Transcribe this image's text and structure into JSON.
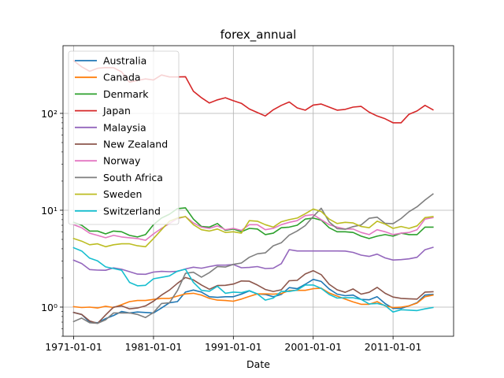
{
  "chart_data": {
    "type": "line",
    "title": "forex_annual",
    "xlabel": "Date",
    "ylabel": "",
    "yscale": "log",
    "ylim": [
      0.5,
      500
    ],
    "xlim": [
      "1969-09-01",
      "2018-08-01"
    ],
    "x": [
      "1971-01-01",
      "1972-01-01",
      "1973-01-01",
      "1974-01-01",
      "1975-01-01",
      "1976-01-01",
      "1977-01-01",
      "1978-01-01",
      "1979-01-01",
      "1980-01-01",
      "1981-01-01",
      "1982-01-01",
      "1983-01-01",
      "1984-01-01",
      "1985-01-01",
      "1986-01-01",
      "1987-01-01",
      "1988-01-01",
      "1989-01-01",
      "1990-01-01",
      "1991-01-01",
      "1992-01-01",
      "1993-01-01",
      "1994-01-01",
      "1995-01-01",
      "1996-01-01",
      "1997-01-01",
      "1998-01-01",
      "1999-01-01",
      "2000-01-01",
      "2001-01-01",
      "2002-01-01",
      "2003-01-01",
      "2004-01-01",
      "2005-01-01",
      "2006-01-01",
      "2007-01-01",
      "2008-01-01",
      "2009-01-01",
      "2010-01-01",
      "2011-01-01",
      "2012-01-01",
      "2013-01-01",
      "2014-01-01",
      "2015-01-01",
      "2016-01-01"
    ],
    "xticks": [
      "1971-01-01",
      "1981-01-01",
      "1991-01-01",
      "2001-01-01",
      "2011-01-01"
    ],
    "yticks": [
      {
        "value": 1,
        "label": "10⁰"
      },
      {
        "value": 10,
        "label": "10¹"
      },
      {
        "value": 100,
        "label": "10²"
      }
    ],
    "grid": true,
    "legend_position": "upper left",
    "series": [
      {
        "name": "Australia",
        "color": "#1f77b4",
        "values": [
          0.88,
          0.84,
          0.7,
          0.69,
          0.76,
          0.82,
          0.9,
          0.87,
          0.89,
          0.88,
          0.87,
          0.98,
          1.11,
          1.14,
          1.43,
          1.5,
          1.43,
          1.28,
          1.26,
          1.28,
          1.28,
          1.36,
          1.47,
          1.37,
          1.35,
          1.28,
          1.35,
          1.59,
          1.55,
          1.72,
          1.93,
          1.84,
          1.54,
          1.36,
          1.31,
          1.33,
          1.2,
          1.19,
          1.28,
          1.09,
          0.97,
          0.97,
          1.03,
          1.11,
          1.33,
          1.35
        ]
      },
      {
        "name": "Canada",
        "color": "#ff7f0e",
        "values": [
          1.01,
          0.99,
          1.0,
          0.98,
          1.02,
          0.99,
          1.06,
          1.14,
          1.17,
          1.17,
          1.2,
          1.23,
          1.23,
          1.3,
          1.37,
          1.39,
          1.33,
          1.23,
          1.18,
          1.17,
          1.15,
          1.21,
          1.29,
          1.37,
          1.37,
          1.36,
          1.38,
          1.48,
          1.49,
          1.49,
          1.55,
          1.57,
          1.4,
          1.3,
          1.21,
          1.13,
          1.07,
          1.07,
          1.14,
          1.03,
          0.99,
          1.0,
          1.03,
          1.1,
          1.28,
          1.33
        ]
      },
      {
        "name": "Denmark",
        "color": "#2ca02c",
        "values": [
          7.5,
          7.0,
          6.1,
          6.1,
          5.7,
          6.1,
          6.0,
          5.5,
          5.3,
          5.6,
          7.1,
          8.3,
          9.1,
          10.4,
          10.6,
          8.1,
          6.8,
          6.7,
          7.3,
          6.2,
          6.4,
          6.0,
          6.5,
          6.4,
          5.6,
          5.8,
          6.6,
          6.7,
          7.0,
          8.1,
          8.3,
          7.9,
          6.6,
          6.0,
          6.0,
          5.9,
          5.4,
          5.1,
          5.4,
          5.6,
          5.4,
          5.8,
          5.6,
          5.6,
          6.7,
          6.7
        ]
      },
      {
        "name": "Japan",
        "color": "#d62728",
        "values": [
          350,
          303,
          272,
          292,
          297,
          296,
          268,
          210,
          219,
          227,
          221,
          249,
          238,
          238,
          239,
          169,
          145,
          128,
          138,
          145,
          135,
          127,
          111,
          102,
          94,
          109,
          121,
          131,
          114,
          108,
          122,
          125,
          116,
          108,
          110,
          116,
          118,
          103,
          94,
          88,
          80,
          80,
          98,
          106,
          121,
          109
        ]
      },
      {
        "name": "Malaysia",
        "color": "#9467bd",
        "values": [
          3.05,
          2.82,
          2.44,
          2.41,
          2.4,
          2.54,
          2.46,
          2.32,
          2.19,
          2.18,
          2.3,
          2.34,
          2.32,
          2.34,
          2.48,
          2.58,
          2.52,
          2.62,
          2.71,
          2.71,
          2.75,
          2.55,
          2.57,
          2.62,
          2.5,
          2.52,
          2.81,
          3.92,
          3.8,
          3.8,
          3.8,
          3.8,
          3.8,
          3.8,
          3.79,
          3.67,
          3.44,
          3.34,
          3.52,
          3.22,
          3.06,
          3.09,
          3.15,
          3.27,
          3.91,
          4.14
        ]
      },
      {
        "name": "New Zealand",
        "color": "#8c564b",
        "values": [
          0.88,
          0.84,
          0.72,
          0.68,
          0.83,
          1.0,
          1.03,
          0.96,
          0.98,
          1.03,
          1.15,
          1.33,
          1.5,
          1.76,
          2.02,
          1.91,
          1.69,
          1.53,
          1.67,
          1.68,
          1.73,
          1.86,
          1.85,
          1.69,
          1.52,
          1.45,
          1.51,
          1.87,
          1.89,
          2.2,
          2.38,
          2.16,
          1.72,
          1.51,
          1.42,
          1.54,
          1.36,
          1.42,
          1.6,
          1.39,
          1.27,
          1.23,
          1.22,
          1.21,
          1.43,
          1.44
        ]
      },
      {
        "name": "Norway",
        "color": "#e377c2",
        "values": [
          7.1,
          6.6,
          5.8,
          5.5,
          5.2,
          5.5,
          5.3,
          5.2,
          5.1,
          4.9,
          5.7,
          6.5,
          7.3,
          8.2,
          8.6,
          7.4,
          6.7,
          6.5,
          6.9,
          6.3,
          6.5,
          6.2,
          7.1,
          7.1,
          6.3,
          6.5,
          7.1,
          7.5,
          7.8,
          8.8,
          9.0,
          8.0,
          7.1,
          6.7,
          6.4,
          6.4,
          5.9,
          5.6,
          6.3,
          6.0,
          5.6,
          5.8,
          5.9,
          6.3,
          8.1,
          8.4
        ]
      },
      {
        "name": "South Africa",
        "color": "#7f7f7f",
        "values": [
          0.71,
          0.77,
          0.69,
          0.68,
          0.74,
          0.87,
          0.87,
          0.87,
          0.84,
          0.78,
          0.88,
          1.09,
          1.11,
          1.48,
          2.23,
          2.29,
          2.04,
          2.27,
          2.62,
          2.59,
          2.76,
          2.85,
          3.27,
          3.55,
          3.63,
          4.3,
          4.61,
          5.53,
          6.11,
          6.94,
          8.61,
          10.5,
          7.56,
          6.46,
          6.36,
          6.77,
          7.05,
          8.26,
          8.47,
          7.32,
          7.26,
          8.21,
          9.66,
          10.85,
          12.76,
          14.7
        ]
      },
      {
        "name": "Sweden",
        "color": "#bcbd22",
        "values": [
          5.1,
          4.8,
          4.4,
          4.5,
          4.2,
          4.4,
          4.5,
          4.5,
          4.3,
          4.2,
          5.1,
          6.3,
          7.7,
          8.3,
          8.6,
          7.1,
          6.3,
          6.1,
          6.4,
          5.9,
          6.0,
          5.8,
          7.8,
          7.7,
          7.1,
          6.7,
          7.6,
          8.0,
          8.3,
          9.2,
          10.3,
          9.7,
          8.1,
          7.3,
          7.5,
          7.4,
          6.8,
          6.6,
          7.7,
          7.2,
          6.5,
          6.8,
          6.5,
          6.9,
          8.4,
          8.6
        ]
      },
      {
        "name": "Switzerland",
        "color": "#17becf",
        "values": [
          4.1,
          3.8,
          3.2,
          3.0,
          2.6,
          2.5,
          2.4,
          1.8,
          1.66,
          1.68,
          1.96,
          2.03,
          2.1,
          2.35,
          2.46,
          1.8,
          1.49,
          1.46,
          1.64,
          1.39,
          1.43,
          1.41,
          1.48,
          1.37,
          1.18,
          1.24,
          1.45,
          1.45,
          1.5,
          1.69,
          1.69,
          1.56,
          1.35,
          1.24,
          1.25,
          1.25,
          1.2,
          1.08,
          1.09,
          1.04,
          0.89,
          0.94,
          0.93,
          0.92,
          0.96,
          0.99
        ]
      }
    ]
  }
}
